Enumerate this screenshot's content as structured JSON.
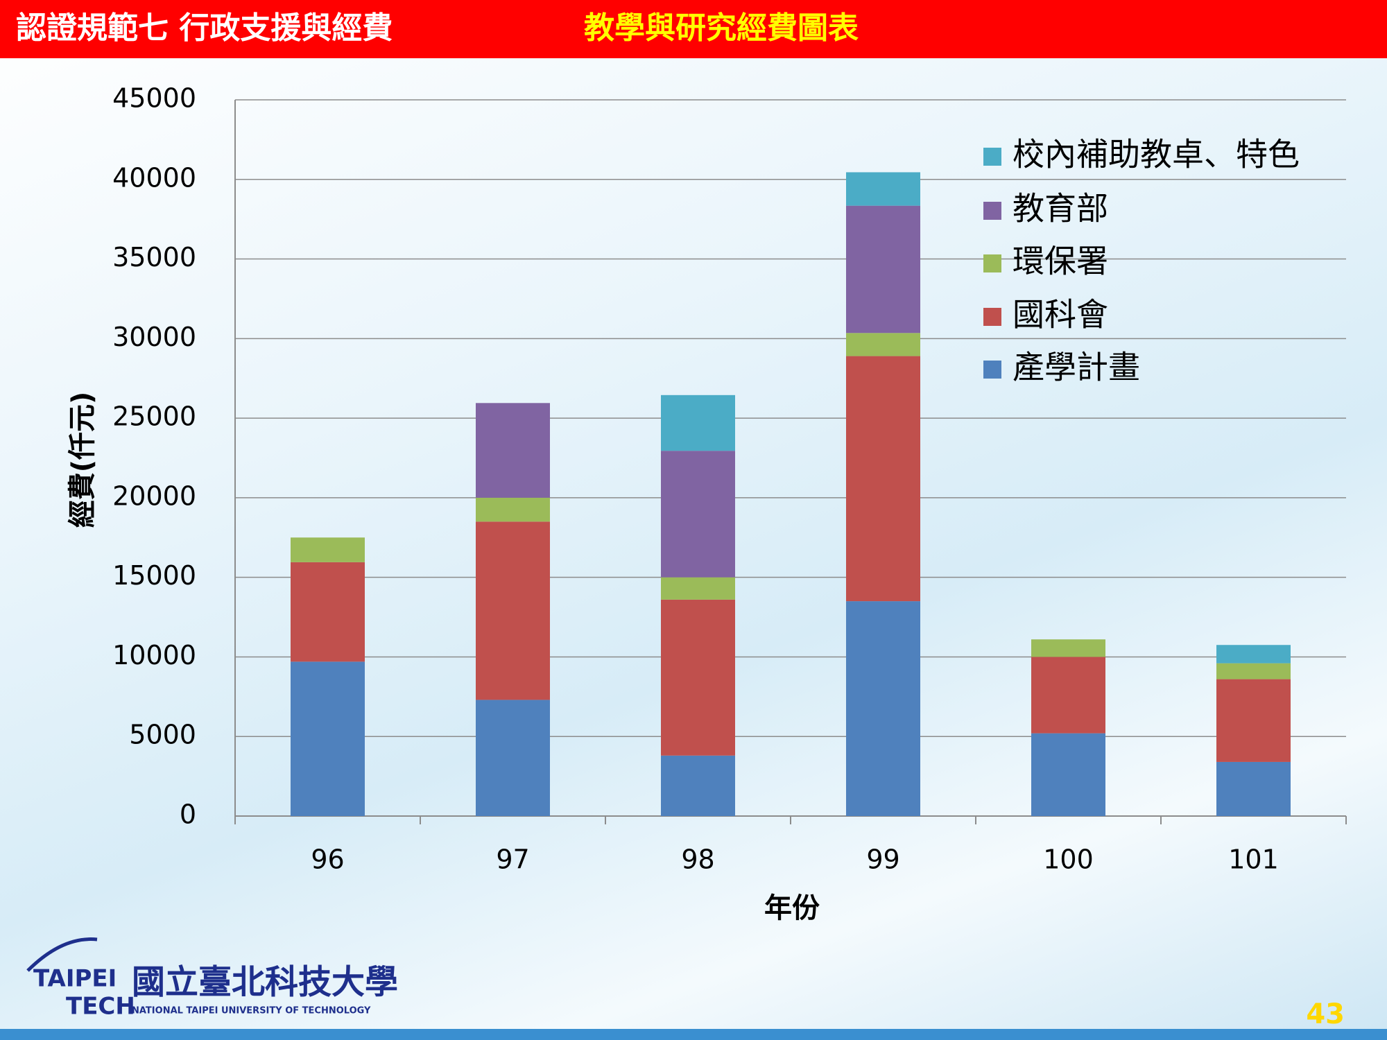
{
  "header": {
    "section": "認證規範七  行政支援與經費",
    "title": "教學與研究經費圖表"
  },
  "chart_data": {
    "type": "stacked-bar",
    "x_label": "年份",
    "y_label": "經費(仟元)",
    "categories": [
      "96",
      "97",
      "98",
      "99",
      "100",
      "101"
    ],
    "series": [
      {
        "name": "產學計畫",
        "color": "#4f81bd",
        "values": [
          9700,
          7300,
          3800,
          13500,
          5200,
          3400
        ]
      },
      {
        "name": "國科會",
        "color": "#c0504d",
        "values": [
          6250,
          11200,
          9800,
          15400,
          4800,
          5200
        ]
      },
      {
        "name": "環保署",
        "color": "#9bbb59",
        "values": [
          1550,
          1500,
          1400,
          1450,
          1100,
          1000
        ]
      },
      {
        "name": "教育部",
        "color": "#8064a2",
        "values": [
          0,
          5950,
          7950,
          8000,
          0,
          0
        ]
      },
      {
        "name": "校內補助教卓、特色",
        "color": "#4bacc6",
        "values": [
          0,
          0,
          3500,
          2100,
          0,
          1150
        ]
      }
    ],
    "ylim": [
      0,
      45000
    ],
    "yticks": [
      0,
      5000,
      10000,
      15000,
      20000,
      25000,
      30000,
      35000,
      40000,
      45000
    ],
    "grid": true,
    "legend": "upper-right"
  },
  "footer": {
    "logo_top": "TAIPEI",
    "logo_bottom": "TECH",
    "school_name": "國立臺北科技大學",
    "school_english": "NATIONAL TAIPEI UNIVERSITY OF TECHNOLOGY",
    "page_number": "43"
  }
}
